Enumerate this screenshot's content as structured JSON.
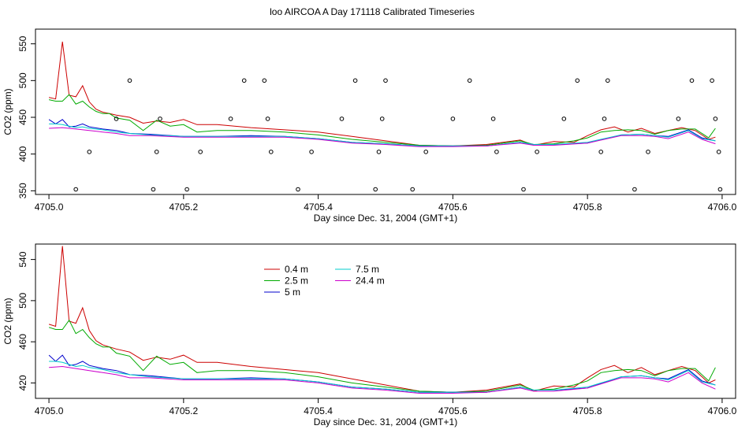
{
  "title": "loo AIRCOA A  Day 171118  Calibrated Timeseries",
  "colors": {
    "0.4 m": "#cc0000",
    "2.5 m": "#00aa00",
    "5 m": "#0000cc",
    "7.5 m": "#00cccc",
    "24.4 m": "#cc00cc"
  },
  "chart_data": [
    {
      "type": "line",
      "title": "loo AIRCOA A  Day 171118  Calibrated Timeseries",
      "xlabel": "Day since Dec. 31, 2004 (GMT+1)",
      "ylabel": "CO2 (ppm)",
      "xlim": [
        4704.98,
        4706.02
      ],
      "ylim": [
        345,
        570
      ],
      "xticks": [
        {
          "value": 4705.0,
          "label": "4705.0"
        },
        {
          "value": 4705.2,
          "label": "4705.2"
        },
        {
          "value": 4705.4,
          "label": "4705.4"
        },
        {
          "value": 4705.6,
          "label": "4705.6"
        },
        {
          "value": 4705.8,
          "label": "4705.8"
        },
        {
          "value": 4706.0,
          "label": "4706.0"
        }
      ],
      "yticks": [
        {
          "value": 350,
          "label": "350"
        },
        {
          "value": 400,
          "label": "400"
        },
        {
          "value": 450,
          "label": "450"
        },
        {
          "value": 500,
          "label": "500"
        },
        {
          "value": 550,
          "label": "550"
        }
      ],
      "grid": false,
      "series": [
        {
          "name": "0.4 m",
          "x": [
            4705.0,
            4705.01,
            4705.02,
            4705.03,
            4705.04,
            4705.05,
            4705.06,
            4705.07,
            4705.08,
            4705.09,
            4705.1,
            4705.12,
            4705.14,
            4705.16,
            4705.18,
            4705.2,
            4705.22,
            4705.25,
            4705.3,
            4705.35,
            4705.4,
            4705.45,
            4705.5,
            4705.55,
            4705.6,
            4705.65,
            4705.7,
            4705.72,
            4705.75,
            4705.78,
            4705.8,
            4705.82,
            4705.84,
            4705.86,
            4705.88,
            4705.9,
            4705.92,
            4705.94,
            4705.96,
            4705.98,
            4705.99
          ],
          "values": [
            477,
            475,
            553,
            480,
            478,
            493,
            471,
            461,
            457,
            455,
            453,
            450,
            442,
            445,
            443,
            447,
            440,
            440,
            436,
            433,
            430,
            424,
            418,
            412,
            411,
            413,
            419,
            412,
            417,
            416,
            425,
            433,
            437,
            430,
            435,
            428,
            432,
            436,
            432,
            420,
            423
          ]
        },
        {
          "name": "2.5 m",
          "x": [
            4705.0,
            4705.01,
            4705.02,
            4705.03,
            4705.04,
            4705.05,
            4705.06,
            4705.07,
            4705.08,
            4705.09,
            4705.1,
            4705.12,
            4705.14,
            4705.16,
            4705.18,
            4705.2,
            4705.22,
            4705.25,
            4705.3,
            4705.35,
            4705.4,
            4705.45,
            4705.5,
            4705.55,
            4705.6,
            4705.65,
            4705.7,
            4705.72,
            4705.75,
            4705.78,
            4705.8,
            4705.82,
            4705.84,
            4705.86,
            4705.88,
            4705.9,
            4705.92,
            4705.94,
            4705.96,
            4705.98,
            4705.99
          ],
          "values": [
            474,
            472,
            472,
            481,
            468,
            472,
            464,
            458,
            455,
            455,
            449,
            446,
            432,
            446,
            438,
            440,
            430,
            432,
            432,
            430,
            426,
            420,
            416,
            412,
            411,
            412,
            418,
            413,
            414,
            418,
            422,
            430,
            432,
            433,
            432,
            427,
            432,
            434,
            434,
            422,
            435
          ]
        },
        {
          "name": "5 m",
          "x": [
            4705.0,
            4705.01,
            4705.02,
            4705.03,
            4705.04,
            4705.05,
            4705.06,
            4705.08,
            4705.1,
            4705.12,
            4705.15,
            4705.2,
            4705.25,
            4705.3,
            4705.35,
            4705.4,
            4705.45,
            4705.5,
            4705.55,
            4705.6,
            4705.65,
            4705.7,
            4705.72,
            4705.75,
            4705.8,
            4705.85,
            4705.88,
            4705.9,
            4705.92,
            4705.95,
            4705.97,
            4705.99
          ],
          "values": [
            447,
            441,
            447,
            437,
            438,
            441,
            437,
            434,
            432,
            428,
            427,
            424,
            424,
            425,
            424,
            421,
            416,
            414,
            411,
            411,
            411,
            416,
            413,
            413,
            415,
            426,
            427,
            425,
            424,
            433,
            422,
            418
          ]
        },
        {
          "name": "7.5 m",
          "x": [
            4705.0,
            4705.01,
            4705.02,
            4705.03,
            4705.04,
            4705.05,
            4705.06,
            4705.08,
            4705.1,
            4705.12,
            4705.15,
            4705.2,
            4705.25,
            4705.3,
            4705.35,
            4705.4,
            4705.45,
            4705.5,
            4705.55,
            4705.6,
            4705.65,
            4705.7,
            4705.72,
            4705.75,
            4705.8,
            4705.85,
            4705.88,
            4705.9,
            4705.92,
            4705.95,
            4705.97,
            4705.99
          ],
          "values": [
            441,
            441,
            440,
            438,
            436,
            437,
            435,
            433,
            430,
            428,
            426,
            424,
            424,
            424,
            424,
            421,
            416,
            414,
            411,
            411,
            411,
            416,
            413,
            413,
            416,
            426,
            427,
            425,
            423,
            432,
            421,
            418
          ]
        },
        {
          "name": "24.4 m",
          "x": [
            4705.0,
            4705.02,
            4705.04,
            4705.06,
            4705.08,
            4705.1,
            4705.12,
            4705.15,
            4705.2,
            4705.25,
            4705.3,
            4705.35,
            4705.4,
            4705.45,
            4705.5,
            4705.55,
            4705.6,
            4705.65,
            4705.7,
            4705.72,
            4705.75,
            4705.8,
            4705.85,
            4705.88,
            4705.9,
            4705.92,
            4705.95,
            4705.97,
            4705.99
          ],
          "values": [
            435,
            436,
            434,
            432,
            430,
            428,
            425,
            425,
            423,
            423,
            423,
            423,
            420,
            415,
            413,
            410,
            410,
            411,
            415,
            412,
            412,
            415,
            425,
            425,
            424,
            421,
            430,
            420,
            414
          ]
        }
      ],
      "points": {
        "x": [
          4705.04,
          4705.06,
          4705.1,
          4705.12,
          4705.155,
          4705.16,
          4705.165,
          4705.205,
          4705.225,
          4705.27,
          4705.29,
          4705.32,
          4705.325,
          4705.33,
          4705.37,
          4705.39,
          4705.435,
          4705.455,
          4705.485,
          4705.49,
          4705.495,
          4705.5,
          4705.54,
          4705.56,
          4705.6,
          4705.625,
          4705.66,
          4705.665,
          4705.705,
          4705.725,
          4705.765,
          4705.785,
          4705.82,
          4705.825,
          4705.83,
          4705.87,
          4705.89,
          4705.935,
          4705.955,
          4705.985,
          4705.99,
          4705.995,
          4705.997
        ],
        "values": [
          352,
          403,
          448,
          500,
          352,
          403,
          448,
          352,
          403,
          448,
          500,
          500,
          448,
          403,
          352,
          403,
          448,
          500,
          352,
          403,
          448,
          500,
          352,
          403,
          448,
          500,
          448,
          403,
          352,
          403,
          448,
          500,
          403,
          448,
          500,
          352,
          403,
          448,
          500,
          500,
          448,
          403,
          352
        ]
      }
    },
    {
      "type": "line",
      "xlabel": "Day since Dec. 31, 2004 (GMT+1)",
      "ylabel": "CO2 (ppm)",
      "xlim": [
        4704.98,
        4706.02
      ],
      "ylim": [
        405,
        555
      ],
      "xticks": [
        {
          "value": 4705.0,
          "label": "4705.0"
        },
        {
          "value": 4705.2,
          "label": "4705.2"
        },
        {
          "value": 4705.4,
          "label": "4705.4"
        },
        {
          "value": 4705.6,
          "label": "4705.6"
        },
        {
          "value": 4705.8,
          "label": "4705.8"
        },
        {
          "value": 4706.0,
          "label": "4706.0"
        }
      ],
      "yticks": [
        {
          "value": 420,
          "label": "420"
        },
        {
          "value": 460,
          "label": "460"
        },
        {
          "value": 500,
          "label": "500"
        },
        {
          "value": 540,
          "label": "540"
        }
      ],
      "grid": false,
      "legend": {
        "placement": "top-left",
        "entries": [
          "0.4 m",
          "2.5 m",
          "5 m",
          "7.5 m",
          "24.4 m"
        ]
      },
      "series": [
        {
          "name": "0.4 m",
          "x": [
            4705.0,
            4705.01,
            4705.02,
            4705.03,
            4705.04,
            4705.05,
            4705.06,
            4705.07,
            4705.08,
            4705.09,
            4705.1,
            4705.12,
            4705.14,
            4705.16,
            4705.18,
            4705.2,
            4705.22,
            4705.25,
            4705.3,
            4705.35,
            4705.4,
            4705.45,
            4705.5,
            4705.55,
            4705.6,
            4705.65,
            4705.7,
            4705.72,
            4705.75,
            4705.78,
            4705.8,
            4705.82,
            4705.84,
            4705.86,
            4705.88,
            4705.9,
            4705.92,
            4705.94,
            4705.96,
            4705.98,
            4705.99
          ],
          "values": [
            477,
            475,
            553,
            480,
            478,
            493,
            471,
            461,
            457,
            455,
            453,
            450,
            442,
            445,
            443,
            447,
            440,
            440,
            436,
            433,
            430,
            424,
            418,
            412,
            411,
            413,
            419,
            412,
            417,
            416,
            425,
            433,
            437,
            430,
            435,
            428,
            432,
            436,
            432,
            420,
            423
          ]
        },
        {
          "name": "2.5 m",
          "x": [
            4705.0,
            4705.01,
            4705.02,
            4705.03,
            4705.04,
            4705.05,
            4705.06,
            4705.07,
            4705.08,
            4705.09,
            4705.1,
            4705.12,
            4705.14,
            4705.16,
            4705.18,
            4705.2,
            4705.22,
            4705.25,
            4705.3,
            4705.35,
            4705.4,
            4705.45,
            4705.5,
            4705.55,
            4705.6,
            4705.65,
            4705.7,
            4705.72,
            4705.75,
            4705.78,
            4705.8,
            4705.82,
            4705.84,
            4705.86,
            4705.88,
            4705.9,
            4705.92,
            4705.94,
            4705.96,
            4705.98,
            4705.99
          ],
          "values": [
            474,
            472,
            472,
            481,
            468,
            472,
            464,
            458,
            455,
            455,
            449,
            446,
            432,
            446,
            438,
            440,
            430,
            432,
            432,
            430,
            426,
            420,
            416,
            412,
            411,
            412,
            418,
            413,
            414,
            418,
            422,
            430,
            432,
            433,
            432,
            427,
            432,
            434,
            434,
            422,
            435
          ]
        },
        {
          "name": "5 m",
          "x": [
            4705.0,
            4705.01,
            4705.02,
            4705.03,
            4705.04,
            4705.05,
            4705.06,
            4705.08,
            4705.1,
            4705.12,
            4705.15,
            4705.2,
            4705.25,
            4705.3,
            4705.35,
            4705.4,
            4705.45,
            4705.5,
            4705.55,
            4705.6,
            4705.65,
            4705.7,
            4705.72,
            4705.75,
            4705.8,
            4705.85,
            4705.88,
            4705.9,
            4705.92,
            4705.95,
            4705.97,
            4705.99
          ],
          "values": [
            447,
            441,
            447,
            437,
            438,
            441,
            437,
            434,
            432,
            428,
            427,
            424,
            424,
            425,
            424,
            421,
            416,
            414,
            411,
            411,
            411,
            416,
            413,
            413,
            415,
            426,
            427,
            425,
            424,
            433,
            422,
            418
          ]
        },
        {
          "name": "7.5 m",
          "x": [
            4705.0,
            4705.01,
            4705.02,
            4705.03,
            4705.04,
            4705.05,
            4705.06,
            4705.08,
            4705.1,
            4705.12,
            4705.15,
            4705.2,
            4705.25,
            4705.3,
            4705.35,
            4705.4,
            4705.45,
            4705.5,
            4705.55,
            4705.6,
            4705.65,
            4705.7,
            4705.72,
            4705.75,
            4705.8,
            4705.85,
            4705.88,
            4705.9,
            4705.92,
            4705.95,
            4705.97,
            4705.99
          ],
          "values": [
            441,
            441,
            440,
            438,
            436,
            437,
            435,
            433,
            430,
            428,
            426,
            424,
            424,
            424,
            424,
            421,
            416,
            414,
            411,
            411,
            411,
            416,
            413,
            413,
            416,
            426,
            427,
            425,
            423,
            432,
            421,
            418
          ]
        },
        {
          "name": "24.4 m",
          "x": [
            4705.0,
            4705.02,
            4705.04,
            4705.06,
            4705.08,
            4705.1,
            4705.12,
            4705.15,
            4705.2,
            4705.25,
            4705.3,
            4705.35,
            4705.4,
            4705.45,
            4705.5,
            4705.55,
            4705.6,
            4705.65,
            4705.7,
            4705.72,
            4705.75,
            4705.8,
            4705.85,
            4705.88,
            4705.9,
            4705.92,
            4705.95,
            4705.97,
            4705.99
          ],
          "values": [
            435,
            436,
            434,
            432,
            430,
            428,
            425,
            425,
            423,
            423,
            423,
            423,
            420,
            415,
            413,
            410,
            410,
            411,
            415,
            412,
            412,
            415,
            425,
            425,
            424,
            421,
            430,
            420,
            414
          ]
        }
      ]
    }
  ]
}
